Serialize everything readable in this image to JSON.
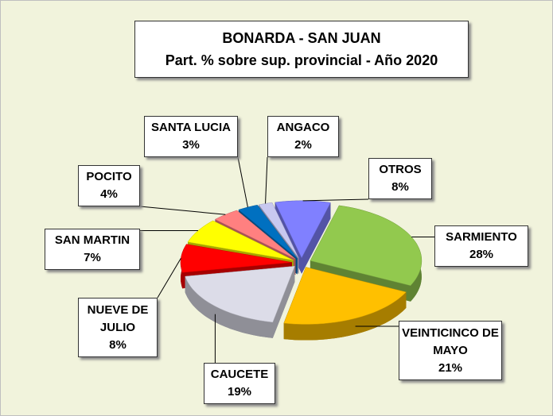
{
  "chart_data": {
    "type": "pie",
    "title": "BONARDA - SAN JUAN",
    "subtitle": "Part. % sobre sup. provincial  - Año 2020",
    "categories": [
      "SARMIENTO",
      "VEINTICINCO DE MAYO",
      "CAUCETE",
      "NUEVE DE JULIO",
      "SAN MARTIN",
      "POCITO",
      "SANTA LUCIA",
      "ANGACO",
      "OTROS"
    ],
    "values": [
      28,
      21,
      19,
      8,
      7,
      4,
      3,
      2,
      8
    ],
    "value_labels": [
      "28%",
      "21%",
      "19%",
      "8%",
      "7%",
      "4%",
      "3%",
      "2%",
      "8%"
    ],
    "colors": [
      "#92c94e",
      "#ffc000",
      "#dcdce8",
      "#ff0000",
      "#ffff00",
      "#ff8080",
      "#0070c0",
      "#c8c8f0",
      "#8080ff"
    ]
  }
}
